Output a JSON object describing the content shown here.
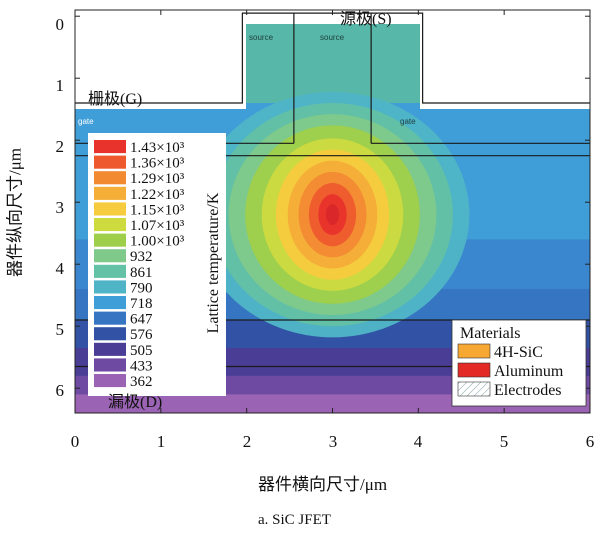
{
  "chart_data": {
    "type": "heatmap",
    "title": "",
    "xlabel": "器件横向尺寸/μm",
    "ylabel": "器件纵向尺寸/μm",
    "x_ticks": [
      "0",
      "1",
      "2",
      "3",
      "4",
      "5",
      "6"
    ],
    "y_ticks": [
      "0",
      "1",
      "2",
      "3",
      "4",
      "5",
      "6"
    ],
    "xlim": [
      0,
      6
    ],
    "ylim": [
      6.4,
      -0.1
    ],
    "y_axis_direction": "downward",
    "colorbar": {
      "title": "Lattice temperature/K",
      "levels": [
        "1.43×10³",
        "1.36×10³",
        "1.29×10³",
        "1.22×10³",
        "1.15×10³",
        "1.07×10³",
        "1.00×10³",
        "932",
        "861",
        "790",
        "718",
        "647",
        "576",
        "505",
        "433",
        "362"
      ],
      "colors": [
        "#e8332d",
        "#ee5a2e",
        "#f28a32",
        "#f5ae38",
        "#f7cb3e",
        "#cddb3f",
        "#9fcf4a",
        "#7fc98a",
        "#63c1a5",
        "#4fb5c6",
        "#3f9ed8",
        "#3575c2",
        "#3253a5",
        "#4a3d95",
        "#6f4aa2",
        "#9a63b3"
      ],
      "levels_as_numbers_K": [
        1430,
        1360,
        1290,
        1220,
        1150,
        1070,
        1000,
        932,
        861,
        790,
        718,
        647,
        576,
        505,
        433,
        362
      ]
    },
    "hotspot": {
      "x": 3.0,
      "y": 3.2,
      "value_K": 1430
    },
    "structure": {
      "surface_y": 1.4,
      "mesa": {
        "x": [
          1.95,
          4.05
        ],
        "y": [
          -0.05,
          1.4
        ]
      },
      "inner_lines_x": [
        2.55,
        3.45
      ],
      "inner_lines_bottom_y": 2.05,
      "horizontal_lines_y": [
        2.05,
        2.25,
        4.9,
        5.65
      ]
    },
    "annotations": {
      "source_top": "源极(S)",
      "gate": "栅极(G)",
      "drain": "漏极(D)",
      "source_small_1": "source",
      "source_small_2": "source",
      "gate_small_1": "gate",
      "gate_small_2": "gate"
    },
    "legend": {
      "title": "Materials",
      "placement": "bottom-right",
      "items": [
        {
          "label": "4H-SiC",
          "color": "#f7a833"
        },
        {
          "label": "Aluminum",
          "color": "#e42a24"
        },
        {
          "label": "Electrodes",
          "color": "hatched"
        }
      ]
    }
  },
  "caption": "a. SiC JFET"
}
